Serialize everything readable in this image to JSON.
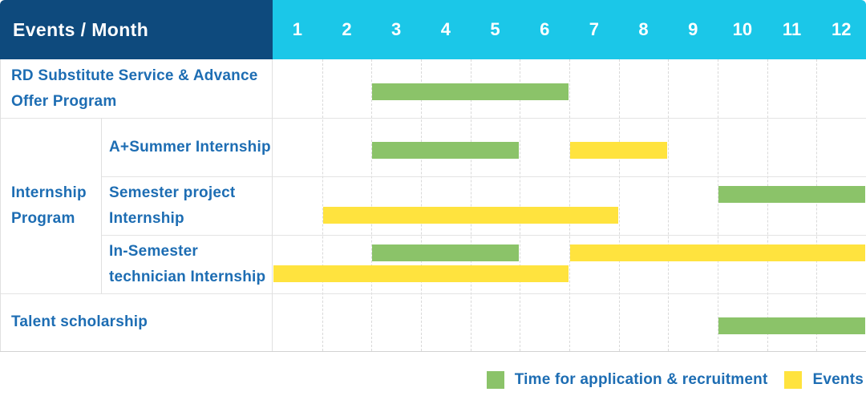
{
  "colors": {
    "header_navy": "#0E4A7D",
    "header_cyan": "#1BC7E8",
    "bar_green": "#8BC369",
    "bar_yellow": "#FFE33E",
    "label_blue": "#1D6DB3"
  },
  "header": {
    "title": "Events / Month",
    "months": [
      "1",
      "2",
      "3",
      "4",
      "5",
      "6",
      "7",
      "8",
      "9",
      "10",
      "11",
      "12"
    ]
  },
  "chart_data": {
    "type": "bar",
    "subtype": "gantt-schedule",
    "title": "Events / Month",
    "x_axis": {
      "label": "Month",
      "range": [
        1,
        12
      ],
      "ticks": [
        1,
        2,
        3,
        4,
        5,
        6,
        7,
        8,
        9,
        10,
        11,
        12
      ],
      "gridlines": "dashed-vertical"
    },
    "series_legend": [
      {
        "name": "Time for application & recruitment",
        "color": "#8BC369"
      },
      {
        "name": "Events",
        "color": "#FFE33E"
      }
    ],
    "rows": [
      {
        "group": "",
        "label": "RD Substitute Service & Advance Offer Program",
        "bars": [
          {
            "series": "Time for application & recruitment",
            "color_key": "green",
            "start_month": 3,
            "end_month": 6,
            "lane": "middle"
          }
        ]
      },
      {
        "group": "Internship Program",
        "label": "A+Summer Internship",
        "bars": [
          {
            "series": "Time for application & recruitment",
            "color_key": "green",
            "start_month": 3,
            "end_month": 5,
            "lane": "middle"
          },
          {
            "series": "Events",
            "color_key": "yellow",
            "start_month": 7,
            "end_month": 8,
            "lane": "middle"
          }
        ]
      },
      {
        "group": "Internship Program",
        "label": "Semester project Internship",
        "bars": [
          {
            "series": "Time for application & recruitment",
            "color_key": "green",
            "start_month": 10,
            "end_month": 12,
            "lane": "top"
          },
          {
            "series": "Events",
            "color_key": "yellow",
            "start_month": 2,
            "end_month": 7,
            "lane": "bottom"
          }
        ]
      },
      {
        "group": "Internship Program",
        "label": "In-Semester technician Internship",
        "bars": [
          {
            "series": "Time for application & recruitment",
            "color_key": "green",
            "start_month": 3,
            "end_month": 5,
            "lane": "top"
          },
          {
            "series": "Events",
            "color_key": "yellow",
            "start_month": 7,
            "end_month": 12,
            "lane": "top"
          },
          {
            "series": "Events",
            "color_key": "yellow",
            "start_month": 1,
            "end_month": 6,
            "lane": "bottom"
          }
        ]
      },
      {
        "group": "",
        "label": "Talent scholarship",
        "bars": [
          {
            "series": "Time for application & recruitment",
            "color_key": "green",
            "start_month": 10,
            "end_month": 12,
            "lane": "middle"
          }
        ]
      }
    ],
    "legend": {
      "position": "bottom-right",
      "items": [
        {
          "label": "Time for application & recruitment",
          "color_key": "green"
        },
        {
          "label": "Events",
          "color_key": "yellow"
        }
      ]
    }
  }
}
